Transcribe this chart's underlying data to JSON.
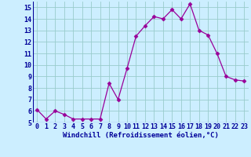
{
  "x": [
    0,
    1,
    2,
    3,
    4,
    5,
    6,
    7,
    8,
    9,
    10,
    11,
    12,
    13,
    14,
    15,
    16,
    17,
    18,
    19,
    20,
    21,
    22,
    23
  ],
  "y": [
    6.1,
    5.3,
    6.0,
    5.7,
    5.3,
    5.3,
    5.3,
    5.3,
    8.4,
    7.0,
    9.7,
    12.5,
    13.4,
    14.2,
    14.0,
    14.8,
    14.0,
    15.3,
    13.0,
    12.6,
    11.0,
    9.0,
    8.7,
    8.6
  ],
  "line_color": "#990099",
  "marker": "D",
  "marker_size": 2.5,
  "bg_color": "#cceeff",
  "grid_color": "#99cccc",
  "xlabel": "Windchill (Refroidissement éolien,°C)",
  "xlabel_color": "#000099",
  "xlabel_fontsize": 6.5,
  "tick_color": "#000099",
  "tick_fontsize": 6,
  "xlim": [
    -0.5,
    23.5
  ],
  "ylim": [
    5,
    15.5
  ],
  "yticks": [
    5,
    6,
    7,
    8,
    9,
    10,
    11,
    12,
    13,
    14,
    15
  ],
  "xticks": [
    0,
    1,
    2,
    3,
    4,
    5,
    6,
    7,
    8,
    9,
    10,
    11,
    12,
    13,
    14,
    15,
    16,
    17,
    18,
    19,
    20,
    21,
    22,
    23
  ]
}
